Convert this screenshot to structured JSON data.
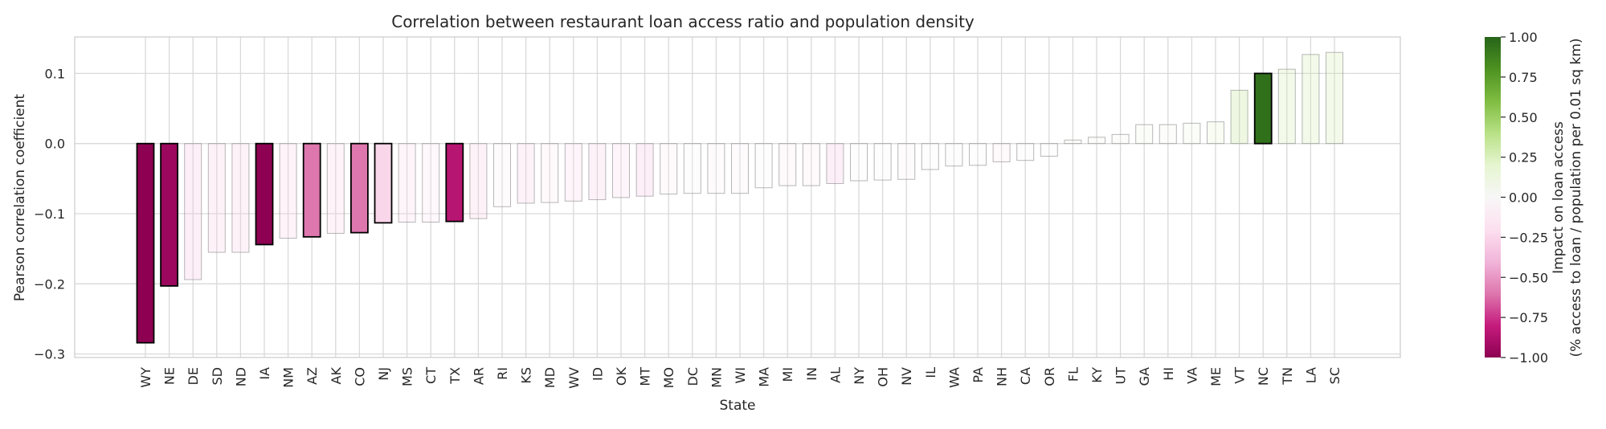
{
  "chart_data": {
    "type": "bar",
    "title": "Correlation between restaurant loan access ratio and population density",
    "xlabel": "State",
    "ylabel": "Pearson correlation coefficient",
    "ylim": [
      -0.305,
      0.152
    ],
    "yticks": [
      -0.3,
      -0.2,
      -0.1,
      0.0,
      0.1
    ],
    "ytick_labels": [
      "−0.3",
      "−0.2",
      "−0.1",
      "0.0",
      "0.1"
    ],
    "grid": true,
    "categories": [
      "WY",
      "NE",
      "DE",
      "SD",
      "ND",
      "IA",
      "NM",
      "AZ",
      "AK",
      "CO",
      "NJ",
      "MS",
      "CT",
      "TX",
      "AR",
      "RI",
      "KS",
      "MD",
      "WV",
      "ID",
      "OK",
      "MT",
      "MO",
      "DC",
      "MN",
      "WI",
      "MA",
      "MI",
      "IN",
      "AL",
      "NY",
      "OH",
      "NV",
      "IL",
      "WA",
      "PA",
      "NH",
      "CA",
      "OR",
      "FL",
      "KY",
      "UT",
      "GA",
      "HI",
      "VA",
      "ME",
      "VT",
      "NC",
      "TN",
      "LA",
      "SC"
    ],
    "values": [
      -0.284,
      -0.203,
      -0.194,
      -0.155,
      -0.155,
      -0.144,
      -0.135,
      -0.133,
      -0.128,
      -0.127,
      -0.113,
      -0.112,
      -0.112,
      -0.111,
      -0.107,
      -0.09,
      -0.085,
      -0.084,
      -0.082,
      -0.08,
      -0.077,
      -0.075,
      -0.072,
      -0.071,
      -0.071,
      -0.071,
      -0.063,
      -0.06,
      -0.06,
      -0.057,
      -0.053,
      -0.052,
      -0.051,
      -0.037,
      -0.032,
      -0.031,
      -0.026,
      -0.024,
      -0.018,
      0.005,
      0.009,
      0.013,
      0.027,
      0.027,
      0.029,
      0.031,
      0.076,
      0.1,
      0.106,
      0.127,
      0.13
    ],
    "impact": [
      -1.0,
      -0.95,
      -0.35,
      -0.3,
      -0.3,
      -1.0,
      -0.28,
      -0.6,
      -0.28,
      -0.6,
      -0.25,
      -0.25,
      -0.2,
      -0.85,
      -0.3,
      -0.05,
      -0.3,
      -0.15,
      -0.25,
      -0.3,
      -0.25,
      -0.35,
      -0.1,
      0.0,
      -0.05,
      -0.05,
      0.0,
      -0.15,
      -0.15,
      -0.35,
      0.0,
      0.0,
      -0.05,
      0.0,
      0.0,
      0.0,
      -0.15,
      0.0,
      0.0,
      0.05,
      0.05,
      0.05,
      0.1,
      0.05,
      0.08,
      0.2,
      0.4,
      0.95,
      0.3,
      0.3,
      0.3
    ],
    "highlighted": [
      "WY",
      "NE",
      "IA",
      "AZ",
      "CO",
      "NJ",
      "TX",
      "NC"
    ],
    "colorbar": {
      "label_line1": "Impact on loan access",
      "label_line2": "(% access to loan / population per 0.01 sq km)",
      "range": [
        -1.0,
        1.0
      ],
      "ticks": [
        1.0,
        0.75,
        0.5,
        0.25,
        0.0,
        -0.25,
        -0.5,
        -0.75,
        -1.0
      ],
      "tick_labels": [
        "1.00",
        "0.75",
        "0.50",
        "0.25",
        "0.00",
        "−0.25",
        "−0.50",
        "−0.75",
        "−1.00"
      ],
      "colormap": "PiYG"
    }
  }
}
